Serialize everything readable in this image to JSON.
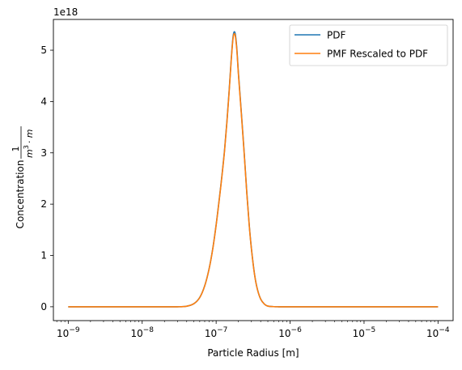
{
  "chart_data": {
    "type": "line",
    "xlabel": "Particle Radius [m]",
    "ylabel_prefix": "Concentration",
    "ylabel_fraction": {
      "numerator": "1",
      "denominator_base": "m",
      "denominator_exp": "3",
      "denominator_suffix": "· m"
    },
    "x_scale": "log",
    "x_ticks": [
      1e-09,
      1e-08,
      1e-07,
      1e-06,
      1e-05,
      0.0001
    ],
    "x_tick_labels": [
      {
        "base": "10",
        "exp": "−9"
      },
      {
        "base": "10",
        "exp": "−8"
      },
      {
        "base": "10",
        "exp": "−7"
      },
      {
        "base": "10",
        "exp": "−6"
      },
      {
        "base": "10",
        "exp": "−5"
      },
      {
        "base": "10",
        "exp": "−4"
      }
    ],
    "xlim": [
      6.3e-10,
      0.00016
    ],
    "y_ticks": [
      0,
      1,
      2,
      3,
      4,
      5
    ],
    "y_tick_labels": [
      "0",
      "1",
      "2",
      "3",
      "4",
      "5"
    ],
    "y_offset_label": "1e18",
    "ylim": [
      -0.27,
      5.6
    ],
    "grid": false,
    "legend_position": "top-right",
    "series": [
      {
        "name": "PDF",
        "color": "#1f77b4",
        "x": [
          1e-09,
          1e-08,
          3e-08,
          4e-08,
          5e-08,
          6e-08,
          7e-08,
          8e-08,
          9e-08,
          1e-07,
          1.1e-07,
          1.2e-07,
          1.3e-07,
          1.4e-07,
          1.5e-07,
          1.6e-07,
          1.7e-07,
          1.8e-07,
          1.9e-07,
          2e-07,
          2.2e-07,
          2.4e-07,
          2.6e-07,
          2.8e-07,
          3e-07,
          3.3e-07,
          3.6e-07,
          4e-07,
          4.5e-07,
          5e-07,
          6e-07,
          7e-07,
          8e-07,
          1e-06,
          2e-06,
          1e-05,
          0.0001
        ],
        "y": [
          0,
          0,
          0.0,
          0.011,
          0.06,
          0.181,
          0.408,
          0.73,
          1.133,
          1.6,
          2.09,
          2.57,
          3.06,
          3.62,
          4.22,
          4.83,
          5.28,
          5.34,
          5.05,
          4.56,
          3.75,
          2.98,
          2.22,
          1.6,
          1.133,
          0.64,
          0.35,
          0.15,
          0.05,
          0.013,
          0.002,
          0.0,
          0.0,
          0,
          0,
          0,
          0
        ]
      },
      {
        "name": "PMF Rescaled to PDF",
        "color": "#ff7f0e",
        "x": [
          1e-09,
          1e-08,
          3e-08,
          4e-08,
          5e-08,
          6e-08,
          7e-08,
          8e-08,
          9e-08,
          1e-07,
          1.1e-07,
          1.2e-07,
          1.3e-07,
          1.4e-07,
          1.5e-07,
          1.6e-07,
          1.7e-07,
          1.8e-07,
          1.9e-07,
          2e-07,
          2.2e-07,
          2.4e-07,
          2.6e-07,
          2.8e-07,
          3e-07,
          3.3e-07,
          3.6e-07,
          4e-07,
          4.5e-07,
          5e-07,
          6e-07,
          7e-07,
          8e-07,
          1e-06,
          2e-06,
          1e-05,
          0.0001
        ],
        "y": [
          0,
          0,
          0.0,
          0.011,
          0.06,
          0.18,
          0.405,
          0.726,
          1.126,
          1.59,
          2.078,
          2.556,
          3.044,
          3.602,
          4.2,
          4.806,
          5.25,
          5.3,
          5.02,
          4.533,
          3.728,
          2.963,
          2.207,
          1.591,
          1.126,
          0.636,
          0.348,
          0.149,
          0.05,
          0.013,
          0.002,
          0.0,
          0.0,
          0,
          0,
          0,
          0
        ]
      }
    ]
  }
}
